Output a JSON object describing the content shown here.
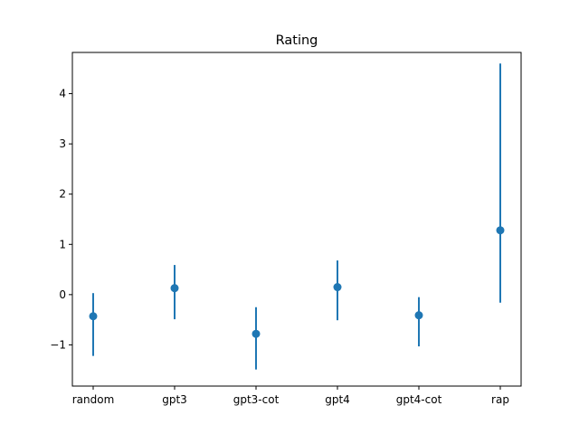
{
  "chart_data": {
    "type": "scatter",
    "title": "Rating",
    "xlabel": "",
    "ylabel": "",
    "categories": [
      "random",
      "gpt3",
      "gpt3-cot",
      "gpt4",
      "gpt4-cot",
      "rap"
    ],
    "values": [
      -0.43,
      0.13,
      -0.78,
      0.15,
      -0.41,
      1.28
    ],
    "error_low": [
      -1.22,
      -0.49,
      -1.49,
      -0.51,
      -1.03,
      -0.16
    ],
    "error_high": [
      0.03,
      0.59,
      -0.25,
      0.68,
      -0.05,
      4.6
    ],
    "ylim": [
      -1.82,
      4.82
    ],
    "yticks": [
      -1,
      0,
      1,
      2,
      3,
      4
    ],
    "ytick_labels": [
      "−1",
      "0",
      "1",
      "2",
      "3",
      "4"
    ],
    "grid": false,
    "color": "#1f77b4"
  }
}
